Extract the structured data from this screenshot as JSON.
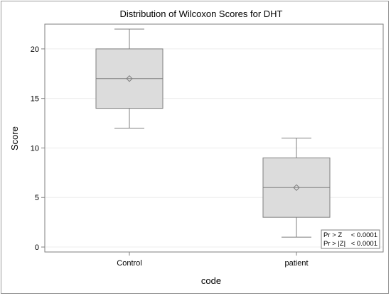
{
  "chart_data": {
    "type": "box",
    "title": "Distribution of Wilcoxon Scores for DHT",
    "xlabel": "code",
    "ylabel": "Score",
    "ylim": [
      -0.5,
      22.5
    ],
    "yticks": [
      0,
      5,
      10,
      15,
      20
    ],
    "grid": true,
    "categories": [
      "Control",
      "patient"
    ],
    "boxes": [
      {
        "category": "Control",
        "min": 12,
        "q1": 14,
        "median": 17,
        "mean": 17,
        "q3": 20,
        "max": 22
      },
      {
        "category": "patient",
        "min": 1,
        "q1": 3,
        "median": 6,
        "mean": 6,
        "q3": 9,
        "max": 11
      }
    ],
    "inset_table": {
      "rows": [
        {
          "label": "Pr > Z",
          "value": "< 0.0001"
        },
        {
          "label": "Pr > |Z|",
          "value": "< 0.0001"
        }
      ],
      "placement": "bottom-right"
    },
    "colors": {
      "box_fill": "#dcdcdc",
      "box_stroke": "#7f7f7f",
      "grid": "#ececec",
      "axis": "#7f7f7f"
    }
  }
}
